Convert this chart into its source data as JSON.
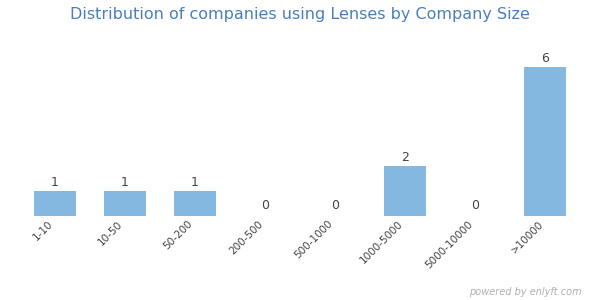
{
  "title": "Distribution of companies using Lenses by Company Size",
  "title_color": "#4a7ebf",
  "categories": [
    "1-10",
    "10-50",
    "50-200",
    "200-500",
    "500-1000",
    "1000-5000",
    "5000-10000",
    ">10000"
  ],
  "values": [
    1,
    1,
    1,
    0,
    0,
    2,
    0,
    6
  ],
  "bar_color": "#85b8e0",
  "label_color": "#444444",
  "background_color": "#ffffff",
  "ylim_max": 7.5,
  "watermark": "powered by enlyft.com",
  "watermark_color": "#b0b0b0",
  "title_fontsize": 11.5,
  "label_fontsize": 9,
  "tick_fontsize": 7.5,
  "bar_width": 0.6
}
